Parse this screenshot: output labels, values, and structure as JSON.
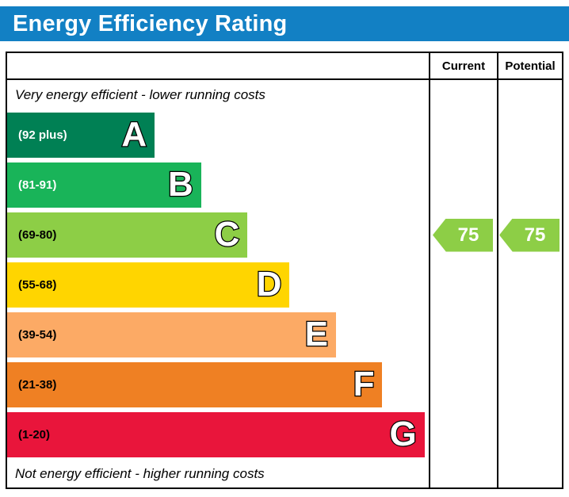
{
  "header": {
    "title": "Energy Efficiency Rating",
    "bg_color": "#1280c4",
    "text_color": "#ffffff"
  },
  "columns": {
    "current": "Current",
    "potential": "Potential"
  },
  "chart_data": {
    "type": "bar",
    "subtype": "epc_energy_efficiency_rating",
    "title": "Energy Efficiency Rating",
    "top_note": "Very energy efficient - lower running costs",
    "bottom_note": "Not energy efficient - higher running costs",
    "bands": [
      {
        "letter": "A",
        "range": "(92 plus)",
        "color": "#008054",
        "text_color": "#ffffff",
        "width_pct": 35
      },
      {
        "letter": "B",
        "range": "(81-91)",
        "color": "#19b459",
        "text_color": "#ffffff",
        "width_pct": 46
      },
      {
        "letter": "C",
        "range": "(69-80)",
        "color": "#8dce46",
        "text_color": "#000000",
        "width_pct": 57
      },
      {
        "letter": "D",
        "range": "(55-68)",
        "color": "#ffd500",
        "text_color": "#000000",
        "width_pct": 67
      },
      {
        "letter": "E",
        "range": "(39-54)",
        "color": "#fcaa65",
        "text_color": "#000000",
        "width_pct": 78
      },
      {
        "letter": "F",
        "range": "(21-38)",
        "color": "#ef8023",
        "text_color": "#000000",
        "width_pct": 89
      },
      {
        "letter": "G",
        "range": "(1-20)",
        "color": "#e9153b",
        "text_color": "#000000",
        "width_pct": 99
      }
    ],
    "current": {
      "value": 75,
      "band": "C",
      "band_index": 2,
      "arrow_color": "#8dce46"
    },
    "potential": {
      "value": 75,
      "band": "C",
      "band_index": 2,
      "arrow_color": "#8dce46"
    }
  }
}
